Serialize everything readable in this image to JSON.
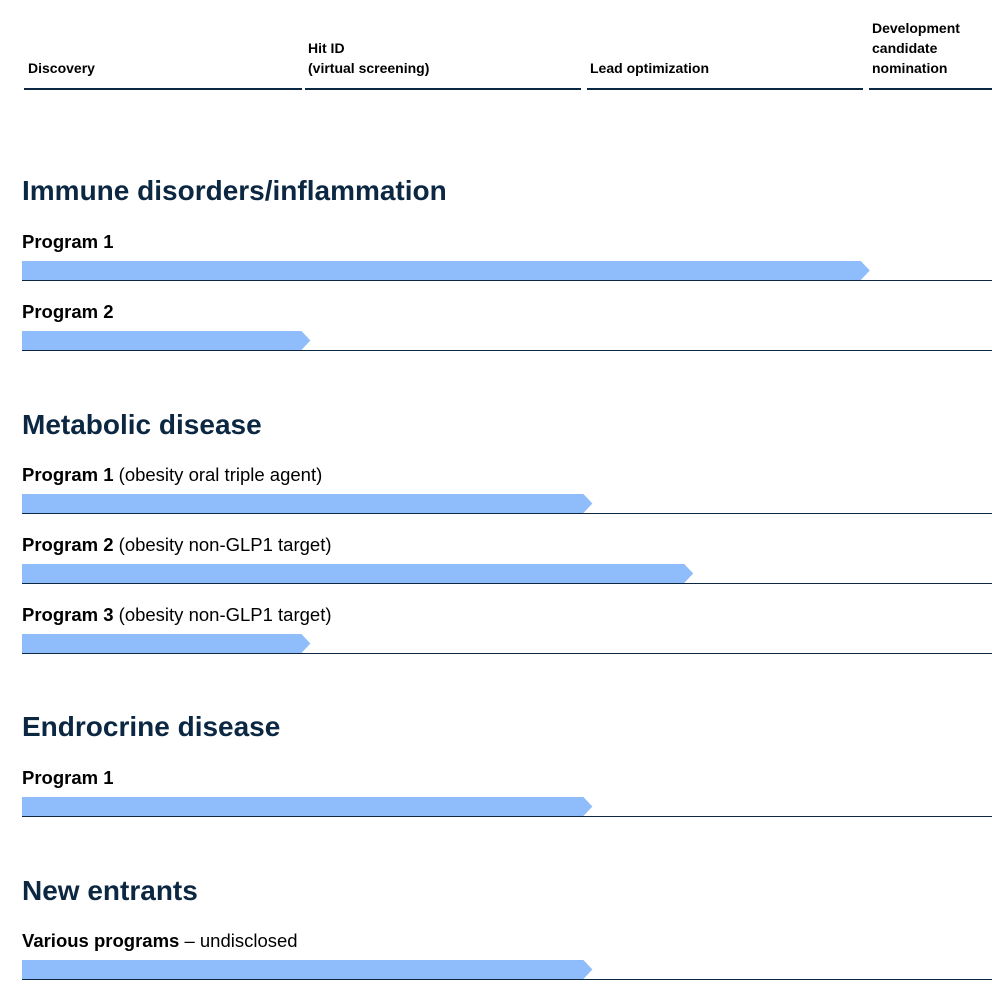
{
  "stages": [
    {
      "lines": [
        "Discovery"
      ]
    },
    {
      "lines": [
        "Hit ID",
        "(virtual screening)"
      ]
    },
    {
      "lines": [
        "Lead optimization"
      ]
    },
    {
      "lines": [
        "Development",
        "candidate",
        "nomination"
      ]
    }
  ],
  "colors": {
    "bar": "#8fbcfb",
    "heading": "#0b2741",
    "rule": "#0b2741"
  },
  "sections": [
    {
      "title": "Immune disorders/inflammation",
      "programs": [
        {
          "name": "Program 1",
          "desc": "",
          "progress_stage": 3.03
        },
        {
          "name": "Program 2",
          "desc": "",
          "progress_stage": 1.03
        }
      ]
    },
    {
      "title": "Metabolic disease",
      "programs": [
        {
          "name": "Program 1",
          "desc": " (obesity oral triple agent)",
          "progress_stage": 2.03
        },
        {
          "name": "Program 2",
          "desc": " (obesity non-GLP1 target)",
          "progress_stage": 2.39
        },
        {
          "name": "Program 3",
          "desc": " (obesity non-GLP1 target)",
          "progress_stage": 1.03
        }
      ]
    },
    {
      "title": "Endrocrine disease",
      "programs": [
        {
          "name": "Program 1",
          "desc": "",
          "progress_stage": 2.03
        }
      ]
    },
    {
      "title": "New entrants",
      "programs": [
        {
          "name": "Various programs",
          "desc": " – undisclosed",
          "progress_stage": 2.03
        }
      ]
    }
  ]
}
